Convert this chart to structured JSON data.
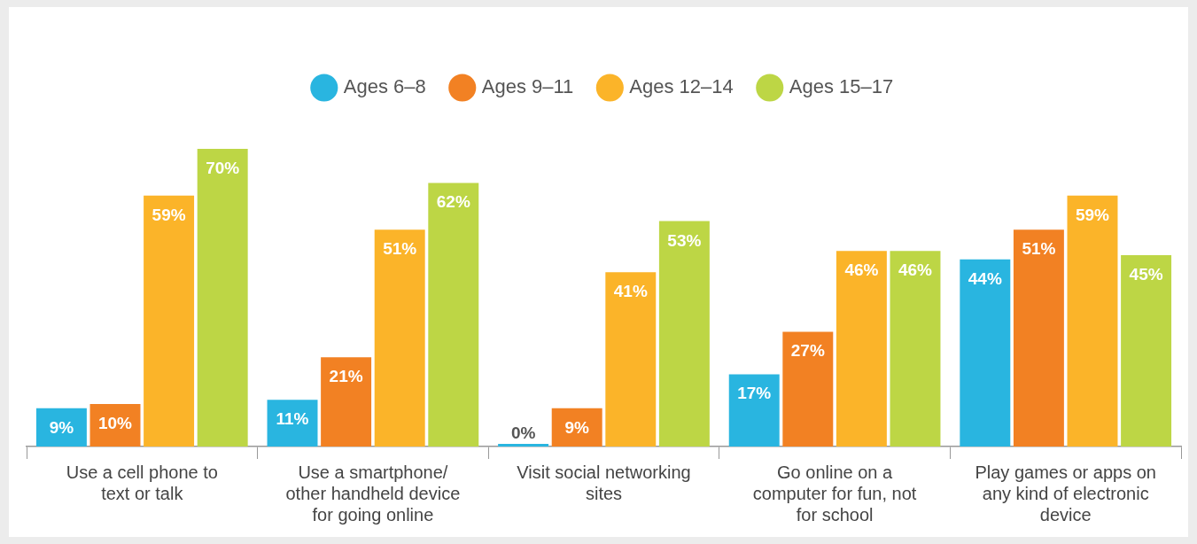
{
  "chart_data": {
    "type": "bar",
    "categories": [
      "Use a cell phone to text or talk",
      "Use a smartphone/ other handheld device for going online",
      "Visit social networking sites",
      "Go online on a computer for fun, not for school",
      "Play games or apps on any kind of electronic device"
    ],
    "series": [
      {
        "name": "Ages 6–8",
        "color": "#29b5e0",
        "values": [
          9,
          11,
          0,
          17,
          44
        ],
        "value_labels": [
          "9%",
          "11%",
          "0%",
          "17%",
          "44%"
        ]
      },
      {
        "name": "Ages 9–11",
        "color": "#f28123",
        "values": [
          10,
          21,
          9,
          27,
          51
        ],
        "value_labels": [
          "10%",
          "21%",
          "9%",
          "27%",
          "51%"
        ]
      },
      {
        "name": "Ages 12–14",
        "color": "#fbb429",
        "values": [
          59,
          51,
          41,
          46,
          59
        ],
        "value_labels": [
          "59%",
          "51%",
          "41%",
          "46%",
          "59%"
        ]
      },
      {
        "name": "Ages 15–17",
        "color": "#bdd645",
        "values": [
          70,
          62,
          53,
          46,
          45
        ],
        "value_labels": [
          "70%",
          "62%",
          "53%",
          "46%",
          "45%"
        ]
      }
    ],
    "legend": "top",
    "grid": false,
    "tick_labels": "x"
  }
}
